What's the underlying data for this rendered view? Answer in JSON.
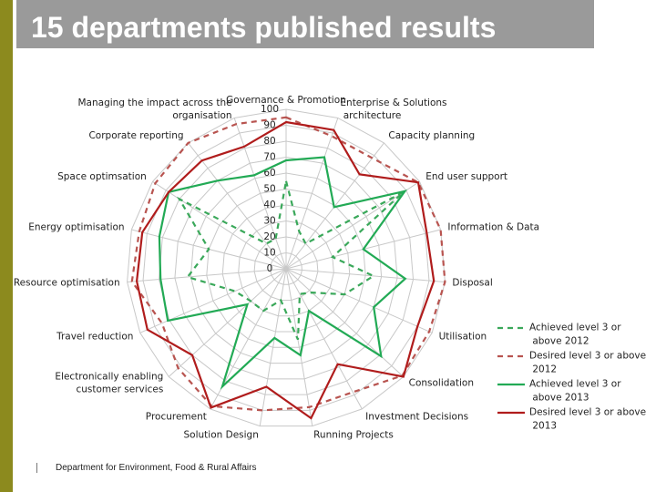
{
  "title": "15 departments published results",
  "footer": "Department for Environment, Food & Rural Affairs",
  "chart_data": {
    "type": "radar",
    "categories": [
      "Governance & Promotion",
      "Enterprise & Solutions architecture",
      "Capacity planning",
      "End user support",
      "Information & Data",
      "Disposal",
      "Utilisation",
      "Consolidation",
      "Investment Decisions",
      "Running Projects",
      "Solution Design",
      "Procurement",
      "Electronically enabling customer services",
      "Travel reduction",
      "Resource optimisation",
      "Energy optimisation",
      "Space optimsation",
      "Corporate reporting",
      "Managing the impact across the organisation"
    ],
    "ylim": [
      0,
      100
    ],
    "yticks": [
      0,
      10,
      20,
      30,
      40,
      50,
      60,
      70,
      80,
      90,
      100
    ],
    "grid": true,
    "series": [
      {
        "name": "Achieved level 3 or above 2012",
        "color": "#3aa85a",
        "dash": true,
        "values": [
          55,
          25,
          20,
          88,
          30,
          55,
          40,
          22,
          18,
          45,
          20,
          30,
          30,
          35,
          62,
          50,
          80,
          20,
          20
        ]
      },
      {
        "name": "Desired level 3 or above 2012",
        "color": "#b85450",
        "dash": true,
        "values": [
          95,
          88,
          88,
          99,
          100,
          100,
          98,
          99,
          88,
          88,
          90,
          98,
          92,
          85,
          97,
          95,
          98,
          100,
          96
        ]
      },
      {
        "name": "Achieved level 3 or above 2013",
        "color": "#22aa55",
        "dash": false,
        "values": [
          68,
          74,
          49,
          89,
          50,
          75,
          60,
          81,
          30,
          55,
          44,
          84,
          33,
          81,
          79,
          82,
          88,
          70,
          62
        ]
      },
      {
        "name": "Desired level 3 or above 2013",
        "color": "#b01c1c",
        "dash": false,
        "values": [
          92,
          92,
          75,
          99,
          91,
          93,
          90,
          100,
          68,
          95,
          75,
          99,
          80,
          95,
          94,
          93,
          88,
          86,
          81
        ]
      }
    ]
  }
}
